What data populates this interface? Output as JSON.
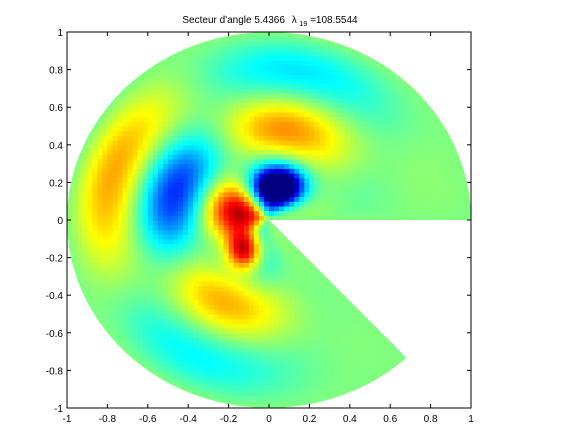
{
  "chart_data": {
    "type": "heatmap",
    "title_main": "Secteur d'angle 5.4366",
    "title_lambda": "λ",
    "title_subscript": "19",
    "title_value": "=108.5544",
    "xlim": [
      -1,
      1
    ],
    "ylim": [
      -1,
      1
    ],
    "xticks": [
      "-1",
      "-0.8",
      "-0.6",
      "-0.4",
      "-0.2",
      "0",
      "0.2",
      "0.4",
      "0.6",
      "0.8",
      "1"
    ],
    "yticks": [
      "1",
      "0.8",
      "0.6",
      "0.4",
      "0.2",
      "0",
      "-0.2",
      "-0.4",
      "-0.6",
      "-0.8",
      "-1"
    ],
    "sector": {
      "radius": 1,
      "angle": 5.4366,
      "start_angle": 0,
      "missing_wedge_end_x": 0.65,
      "missing_wedge_end_y": -0.7
    },
    "colormap": "jet",
    "grid": false,
    "features": [
      {
        "name": "blue-lobe",
        "x": 0.05,
        "y": 0.18,
        "value": -1.0
      },
      {
        "name": "red-lobe",
        "x": -0.12,
        "y": -0.15,
        "value": 1.0
      }
    ]
  }
}
